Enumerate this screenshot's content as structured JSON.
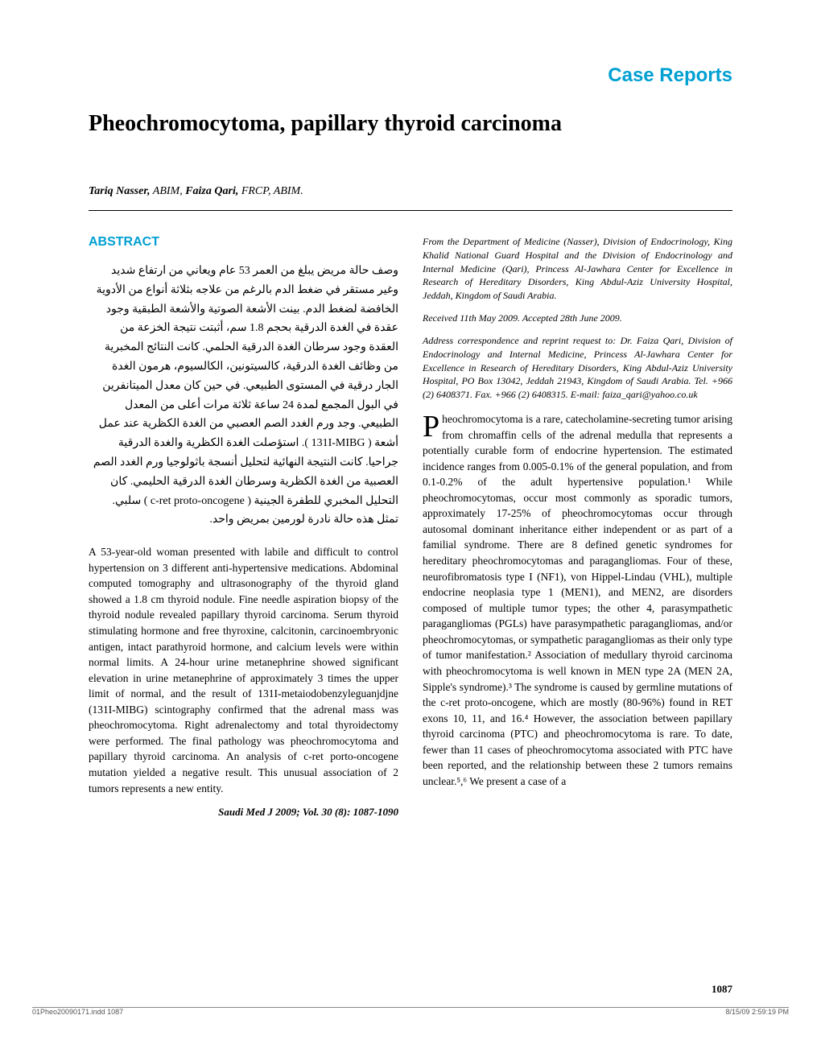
{
  "section_header": "Case Reports",
  "article_title": "Pheochromocytoma, papillary thyroid carcinoma",
  "authors_line": "Tariq Nasser, ABIM, Faiza Qari, FRCP, ABIM.",
  "abstract_heading": "ABSTRACT",
  "arabic_abstract": "وصف حالة مريض يبلغ من العمر 53 عام ويعاني من ارتفاع شديد وغير مستقر في ضغط الدم بالرغم من علاجه بثلاثة أنواع من الأدوية الخافضة لضغط الدم. بينت الأشعة الصوتية والأشعة الطبقية وجود عقدة في الغدة الدرقية بحجم 1.8 سم، أثبتت نتيجة الخزعة من العقدة وجود سرطان الغدة الدرقية الحلمي. كانت النتائج المخبرية من وظائف الغدة الدرقية، كالسيتونين، الكالسيوم، هرمون الغدة الجار درقية في المستوى الطبيعي. في حين كان معدل الميتانفرين في البول المجمع لمدة 24 ساعة ثلاثة مرات أعلى من المعدل الطبيعي. وجد ورم الغدد الصم العصبي من الغدة الكظرية عند عمل أشعة ( 131I-MIBG ). استؤصلت الغدة الكظرية والغدة الدرقية جراحيا. كانت النتيجة النهائية لتحليل أنسجة باثولوجيا ورم الغدد الصم العصبية من الغدة الكظرية وسرطان الغدة الدرقية الحليمي. كان التحليل المخبري للطفرة الجينية ( c-ret proto-oncogene ) سلبي. تمثل هذه حالة نادرة لورمين بمريض واحد.",
  "english_abstract": "A 53-year-old woman presented with labile and difficult to control hypertension on 3 different anti-hypertensive medications. Abdominal computed tomography and ultrasonography of the thyroid gland showed a 1.8 cm thyroid nodule. Fine needle aspiration biopsy of the thyroid nodule revealed papillary thyroid carcinoma. Serum thyroid stimulating hormone and free thyroxine, calcitonin, carcinoembryonic antigen, intact parathyroid hormone, and calcium levels were within normal limits. A 24-hour urine metanephrine showed significant elevation in urine metanephrine of approximately 3 times the upper limit of normal, and the result of 131I-metaiodobenzyleguanjdjne (131I-MIBG) scintography confirmed that the adrenal mass was pheochromocytoma. Right adrenalectomy and total thyroidectomy were performed. The final pathology was pheochromocytoma and papillary thyroid carcinoma. An analysis of c-ret porto-oncogene mutation yielded a negative result. This unusual association of 2 tumors represents a new entity.",
  "citation": "Saudi Med J 2009; Vol. 30 (8): 1087-1090",
  "affiliation": "From the Department of Medicine (Nasser), Division of Endocrinology, King Khalid National Guard Hospital and the Division of Endocrinology and Internal Medicine (Qari), Princess Al-Jawhara Center for Excellence in Research of Hereditary Disorders, King Abdul-Aziz University Hospital, Jeddah, Kingdom of Saudi Arabia.",
  "received": "Received 11th May 2009. Accepted 28th June 2009.",
  "correspondence": "Address correspondence and reprint request to: Dr. Faiza Qari, Division of Endocrinology and Internal Medicine, Princess Al-Jawhara Center for Excellence in Research of Hereditary Disorders, King Abdul-Aziz University Hospital, PO Box 13042, Jeddah 21943, Kingdom of Saudi Arabia. Tel. +966 (2) 6408371. Fax. +966 (2) 6408315. E-mail: faiza_qari@yahoo.co.uk",
  "main_dropcap": "P",
  "main_body": "heochromocytoma is a rare, catecholamine-secreting tumor arising from chromaffin cells of the adrenal medulla that represents a potentially curable form of endocrine hypertension. The estimated incidence ranges from 0.005-0.1% of the general population, and from 0.1-0.2% of the adult hypertensive population.¹ While pheochromocytomas, occur most commonly as sporadic tumors, approximately 17-25% of pheochromocytomas occur through autosomal dominant inheritance either independent or as part of a familial syndrome. There are 8 defined genetic syndromes for hereditary pheochromocytomas and paragangliomas. Four of these, neurofibromatosis type I (NF1), von Hippel-Lindau (VHL), multiple endocrine neoplasia type 1 (MEN1), and MEN2, are disorders composed of multiple tumor types; the other 4, parasympathetic paragangliomas (PGLs) have parasympathetic paragangliomas, and/or pheochromocytomas, or sympathetic paragangliomas as their only type of tumor manifestation.² Association of medullary thyroid carcinoma with pheochromocytoma is well known in MEN type 2A (MEN 2A, Sipple's syndrome).³ The syndrome is caused by germline mutations of the c-ret proto-oncogene, which are mostly (80-96%) found in RET exons 10, 11, and 16.⁴ However, the association between papillary thyroid carcinoma (PTC) and pheochromocytoma is rare. To date, fewer than 11 cases of pheochromocytoma associated with PTC have been reported, and the relationship between these 2 tumors remains unclear.⁵,⁶ We present a case of a",
  "page_number": "1087",
  "footer_left": "01Pheo20090171.indd   1087",
  "footer_right": "8/15/09   2:59:19 PM",
  "colors": {
    "accent": "#00a0d2",
    "text": "#000000",
    "footer_text": "#555555",
    "background": "#ffffff"
  }
}
